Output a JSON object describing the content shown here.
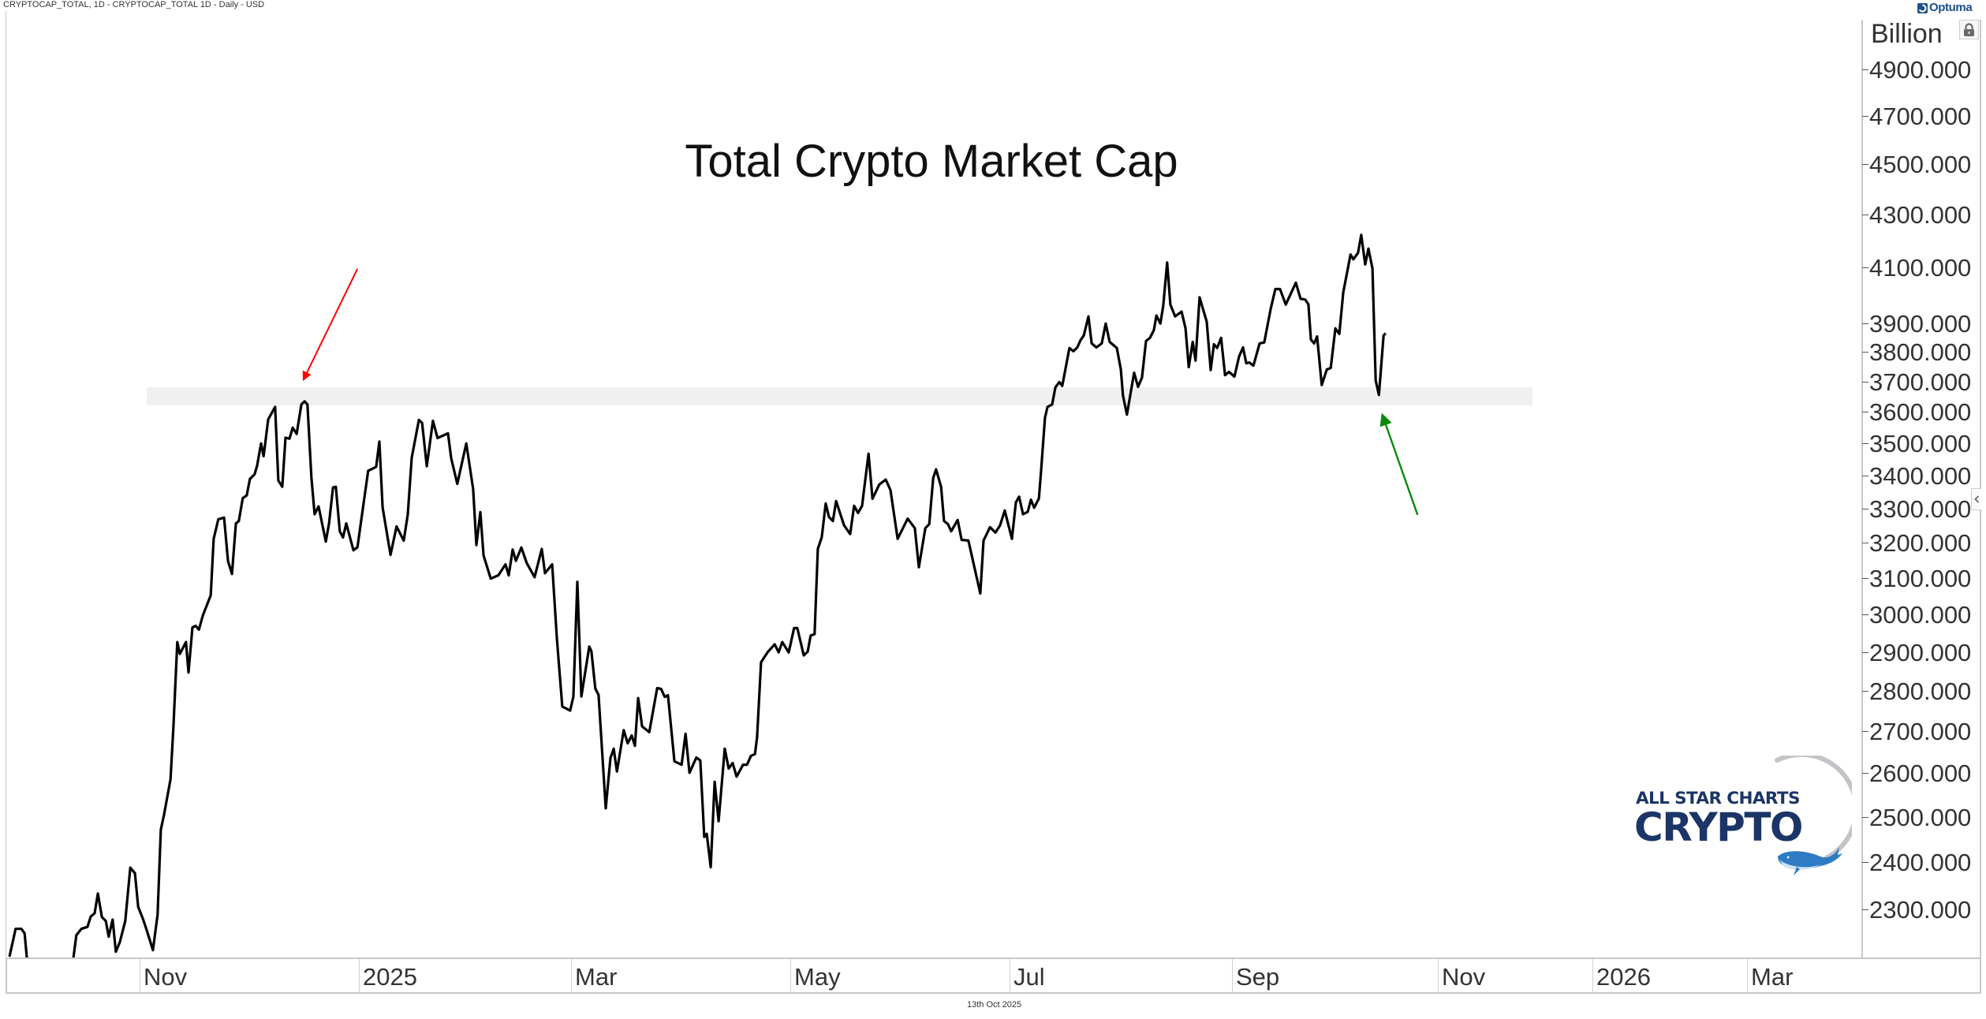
{
  "header": {
    "instrument": "CRYPTOCAP_TOTAL, 1D - CRYPTOCAP_TOTAL  1D - Daily - USD",
    "brand": "Optuma"
  },
  "logo": {
    "line1": "ALL STAR CHARTS",
    "line2": "CRYPTO",
    "color": "#1b3566",
    "accent": "#2e7bc4"
  },
  "footer": {
    "date": "13th Oct 2025"
  },
  "icons": {
    "lock": "lock-icon",
    "collapse": "chevron-left-icon",
    "brand": "optuma-logo-icon"
  },
  "chart_data": {
    "type": "line",
    "title": "Total Crypto Market Cap",
    "ylabel": "Billion",
    "xlabel": "",
    "y_scale": "log",
    "ylim": [
      2180,
      5000
    ],
    "x_unit": "days since 2024-11-01",
    "grid": false,
    "legend": "none",
    "line_color": "#000000",
    "y_ticks": [
      {
        "value": 4900,
        "label": "4900.000"
      },
      {
        "value": 4700,
        "label": "4700.000"
      },
      {
        "value": 4500,
        "label": "4500.000"
      },
      {
        "value": 4300,
        "label": "4300.000"
      },
      {
        "value": 4100,
        "label": "4100.000"
      },
      {
        "value": 3900,
        "label": "3900.000"
      },
      {
        "value": 3800,
        "label": "3800.000"
      },
      {
        "value": 3700,
        "label": "3700.000"
      },
      {
        "value": 3600,
        "label": "3600.000"
      },
      {
        "value": 3500,
        "label": "3500.000"
      },
      {
        "value": 3400,
        "label": "3400.000"
      },
      {
        "value": 3300,
        "label": "3300.000"
      },
      {
        "value": 3200,
        "label": "3200.000"
      },
      {
        "value": 3100,
        "label": "3100.000"
      },
      {
        "value": 3000,
        "label": "3000.000"
      },
      {
        "value": 2900,
        "label": "2900.000"
      },
      {
        "value": 2800,
        "label": "2800.000"
      },
      {
        "value": 2700,
        "label": "2700.000"
      },
      {
        "value": 2600,
        "label": "2600.000"
      },
      {
        "value": 2500,
        "label": "2500.000"
      },
      {
        "value": 2400,
        "label": "2400.000"
      },
      {
        "value": 2300,
        "label": "2300.000"
      }
    ],
    "x_ticks": [
      {
        "day": 0,
        "label": "Nov"
      },
      {
        "day": 61,
        "label": "2025"
      },
      {
        "day": 120,
        "label": "Mar"
      },
      {
        "day": 181,
        "label": "May"
      },
      {
        "day": 242,
        "label": "Jul"
      },
      {
        "day": 304,
        "label": "Sep"
      },
      {
        "day": 365,
        "label": "Nov"
      },
      {
        "day": 426,
        "label": "2026"
      },
      {
        "day": 485,
        "label": "Mar"
      }
    ],
    "series": [
      {
        "name": "CRYPTOCAP_TOTAL",
        "x": [
          -36.2,
          -34.5,
          -32.9,
          -32.0,
          -30.9,
          -19.1,
          -17.6,
          -16.2,
          -14.5,
          -13.6,
          -12.5,
          -11.6,
          -10.5,
          -9.4,
          -8.6,
          -7.5,
          -6.6,
          -5.5,
          -4.0,
          -2.6,
          -1.3,
          -0.4,
          0.9,
          2.0,
          3.7,
          5.0,
          5.9,
          6.8,
          8.6,
          9.4,
          10.5,
          11.2,
          12.9,
          13.6,
          14.7,
          15.6,
          16.5,
          17.6,
          19.8,
          20.6,
          21.9,
          23.5,
          24.6,
          25.7,
          26.8,
          27.6,
          28.7,
          29.8,
          30.7,
          32.0,
          32.7,
          33.8,
          34.5,
          35.8,
          37.7,
          38.6,
          39.7,
          40.6,
          41.7,
          42.6,
          43.7,
          45.0,
          45.9,
          46.7,
          47.8,
          48.7,
          49.8,
          51.8,
          52.7,
          53.8,
          54.6,
          55.7,
          56.6,
          57.5,
          59.5,
          60.6,
          63.6,
          65.8,
          66.7,
          67.6,
          69.8,
          71.5,
          73.5,
          74.6,
          75.7,
          77.7,
          78.6,
          79.9,
          81.6,
          82.9,
          85.8,
          86.7,
          88.4,
          90.9,
          92.8,
          93.7,
          94.8,
          95.7,
          97.7,
          99.8,
          101.8,
          102.7,
          103.8,
          104.7,
          106.2,
          107.7,
          109.9,
          111.9,
          112.8,
          114.8,
          116.1,
          117.6,
          119.8,
          120.7,
          121.8,
          122.9,
          125.1,
          125.7,
          126.8,
          127.7,
          129.7,
          131.0,
          131.9,
          132.8,
          134.7,
          135.8,
          136.9,
          137.8,
          138.7,
          139.8,
          141.8,
          144.0,
          145.1,
          146.1,
          147.0,
          148.8,
          150.8,
          151.9,
          153.0,
          154.9,
          156.0,
          157.1,
          157.8,
          158.9,
          160.0,
          161.1,
          162.8,
          163.9,
          165.0,
          166.1,
          167.9,
          169.0,
          170.1,
          171.2,
          171.8,
          172.9,
          174.7,
          176.7,
          177.8,
          178.8,
          180.6,
          182.1,
          183.0,
          184.8,
          185.9,
          186.7,
          187.8,
          188.7,
          189.8,
          190.9,
          191.8,
          192.9,
          193.8,
          196.0,
          197.7,
          198.8,
          199.9,
          201.0,
          202.8,
          203.9,
          205.8,
          207.6,
          208.9,
          210.9,
          213.7,
          215.7,
          216.8,
          218.6,
          219.7,
          220.8,
          221.6,
          223.0,
          223.8,
          224.9,
          225.8,
          227.6,
          228.7,
          230.6,
          233.9,
          234.8,
          236.6,
          238.1,
          239.4,
          240.7,
          242.7,
          243.8,
          244.7,
          245.8,
          247.1,
          248.0,
          248.9,
          250.2,
          250.8,
          251.9,
          252.6,
          253.9,
          254.8,
          255.9,
          256.7,
          258.7,
          259.8,
          260.9,
          261.8,
          262.7,
          264.0,
          264.9,
          266.2,
          267.7,
          268.8,
          269.9,
          271.9,
          273.0,
          273.6,
          274.7,
          276.7,
          277.8,
          278.9,
          280.0,
          281.1,
          282.2,
          282.9,
          284.0,
          284.8,
          285.9,
          286.8,
          288.1,
          289.9,
          291.0,
          291.9,
          293.0,
          293.8,
          294.9,
          296.9,
          298.0,
          298.9,
          299.8,
          300.9,
          302.0,
          303.1,
          304.6,
          305.9,
          307.0,
          307.9,
          308.7,
          309.9,
          311.6,
          312.9,
          314.7,
          316.0,
          317.3,
          318.9,
          321.7,
          323.0,
          324.3,
          325.2,
          325.9,
          326.8,
          327.6,
          328.9,
          330.3,
          331.4,
          332.7,
          333.8,
          334.9,
          336.9,
          337.7,
          339.0,
          339.9,
          341.0,
          341.9,
          343.0,
          343.9,
          344.8,
          346.1,
          346.7
        ],
        "values": [
          2204,
          2260,
          2260,
          2251,
          2165,
          2165,
          2247,
          2260,
          2264,
          2285,
          2292,
          2333,
          2284,
          2276,
          2244,
          2279,
          2214,
          2233,
          2276,
          2388,
          2376,
          2305,
          2281,
          2257,
          2217,
          2289,
          2471,
          2505,
          2586,
          2708,
          2926,
          2895,
          2926,
          2847,
          2965,
          2969,
          2959,
          2997,
          3052,
          3211,
          3268,
          3273,
          3147,
          3111,
          3256,
          3263,
          3331,
          3339,
          3389,
          3403,
          3430,
          3499,
          3459,
          3576,
          3616,
          3384,
          3365,
          3517,
          3514,
          3549,
          3529,
          3624,
          3634,
          3624,
          3394,
          3283,
          3306,
          3203,
          3256,
          3363,
          3365,
          3233,
          3215,
          3256,
          3178,
          3187,
          3414,
          3426,
          3505,
          3303,
          3165,
          3247,
          3206,
          3282,
          3454,
          3574,
          3564,
          3428,
          3571,
          3516,
          3531,
          3452,
          3374,
          3499,
          3358,
          3193,
          3289,
          3163,
          3098,
          3107,
          3138,
          3107,
          3180,
          3148,
          3186,
          3142,
          3102,
          3182,
          3113,
          3138,
          2934,
          2761,
          2751,
          2786,
          3089,
          2786,
          2914,
          2902,
          2806,
          2790,
          2519,
          2636,
          2658,
          2604,
          2703,
          2671,
          2690,
          2665,
          2782,
          2712,
          2698,
          2807,
          2805,
          2785,
          2789,
          2628,
          2620,
          2694,
          2601,
          2637,
          2630,
          2455,
          2462,
          2389,
          2580,
          2490,
          2658,
          2611,
          2624,
          2592,
          2620,
          2620,
          2641,
          2645,
          2686,
          2873,
          2899,
          2920,
          2899,
          2926,
          2899,
          2963,
          2963,
          2891,
          2901,
          2943,
          2947,
          3182,
          3216,
          3315,
          3275,
          3263,
          3322,
          3250,
          3225,
          3308,
          3287,
          3308,
          3467,
          3329,
          3372,
          3387,
          3355,
          3211,
          3270,
          3242,
          3130,
          3242,
          3254,
          3392,
          3418,
          3365,
          3263,
          3254,
          3233,
          3266,
          3208,
          3206,
          3057,
          3206,
          3245,
          3229,
          3250,
          3294,
          3211,
          3318,
          3335,
          3283,
          3290,
          3326,
          3302,
          3330,
          3412,
          3581,
          3616,
          3624,
          3680,
          3698,
          3685,
          3813,
          3802,
          3815,
          3840,
          3856,
          3923,
          3829,
          3815,
          3829,
          3898,
          3834,
          3813,
          3740,
          3653,
          3591,
          3729,
          3682,
          3713,
          3837,
          3848,
          3875,
          3926,
          3898,
          3960,
          4118,
          3965,
          3923,
          3940,
          3881,
          3748,
          3834,
          3770,
          3991,
          3904,
          3738,
          3826,
          3813,
          3848,
          3721,
          3732,
          3716,
          3784,
          3815,
          3761,
          3764,
          3753,
          3829,
          3832,
          3950,
          4021,
          4021,
          3965,
          4044,
          3986,
          3983,
          3966,
          3842,
          3829,
          3853,
          3688,
          3740,
          3745,
          3881,
          3862,
          4009,
          4148,
          4130,
          4154,
          4222,
          4111,
          4170,
          4096,
          3703,
          3655,
          3856,
          3864
        ]
      }
    ],
    "annotations": [
      {
        "type": "band",
        "name": "support-resistance-zone",
        "y_range": [
          3621,
          3681
        ],
        "x_range": [
          2.0,
          402.4
        ],
        "color": "#f0f0f0"
      },
      {
        "type": "arrow",
        "name": "red-arrow",
        "from": {
          "day": 60.6,
          "value": 4095
        },
        "to": {
          "day": 45.6,
          "value": 3706
        },
        "color": "#ff0000"
      },
      {
        "type": "arrow",
        "name": "green-arrow",
        "from": {
          "day": 357.9,
          "value": 3281
        },
        "to": {
          "day": 345.8,
          "value": 3589
        },
        "color": "#0a8a0a"
      }
    ]
  }
}
